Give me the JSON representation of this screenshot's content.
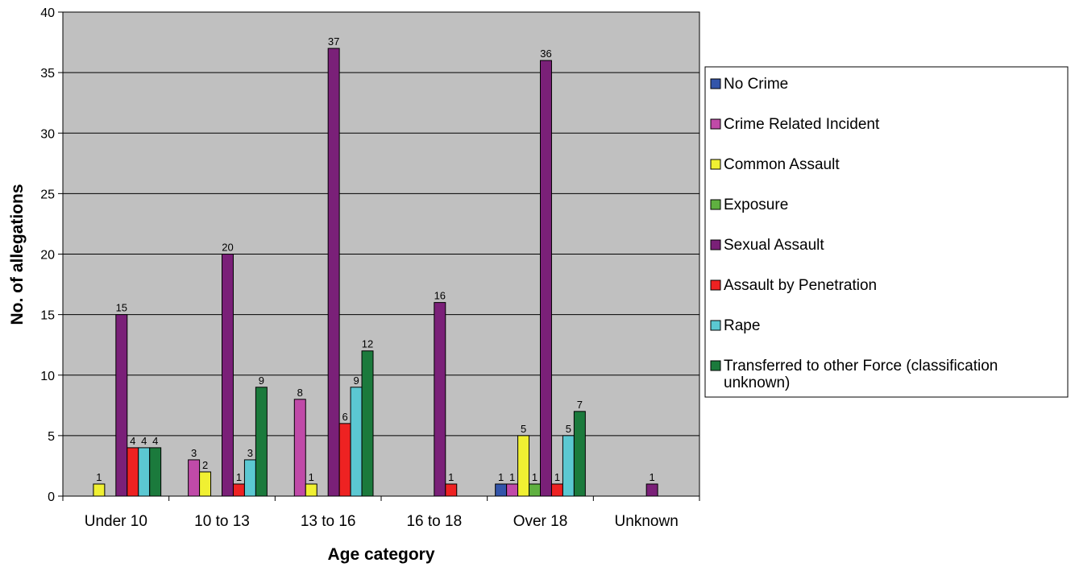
{
  "chart_data": {
    "type": "bar",
    "title": "",
    "xlabel": "Age category",
    "ylabel": "No. of allegations",
    "ylim": [
      0,
      40
    ],
    "yticks": [
      0,
      5,
      10,
      15,
      20,
      25,
      30,
      35,
      40
    ],
    "grid": true,
    "legend_position": "right",
    "plot_background": "#C0C0C0",
    "categories": [
      "Under 10",
      "10 to 13",
      "13 to 16",
      "16 to 18",
      "Over 18",
      "Unknown"
    ],
    "series": [
      {
        "name": "No Crime",
        "color": "#3355AA",
        "values": [
          0,
          0,
          0,
          0,
          1,
          0
        ]
      },
      {
        "name": "Crime Related Incident",
        "color": "#C04AA8",
        "values": [
          0,
          3,
          8,
          0,
          1,
          0
        ]
      },
      {
        "name": "Common Assault",
        "color": "#F0F032",
        "values": [
          1,
          2,
          1,
          0,
          5,
          0
        ]
      },
      {
        "name": "Exposure",
        "color": "#5FB040",
        "values": [
          0,
          0,
          0,
          0,
          1,
          0
        ]
      },
      {
        "name": "Sexual Assault",
        "color": "#7A2078",
        "values": [
          15,
          20,
          37,
          16,
          36,
          1
        ]
      },
      {
        "name": "Assault by Penetration",
        "color": "#EE2222",
        "values": [
          4,
          1,
          6,
          1,
          1,
          0
        ]
      },
      {
        "name": "Rape",
        "color": "#5BC8D2",
        "values": [
          4,
          3,
          9,
          0,
          5,
          0
        ]
      },
      {
        "name": "Transferred to other Force (classification unknown)",
        "legend_lines": [
          "Transferred to other Force (classification",
          "unknown)"
        ],
        "color": "#1B7A3C",
        "values": [
          4,
          9,
          12,
          0,
          7,
          0
        ]
      }
    ]
  }
}
